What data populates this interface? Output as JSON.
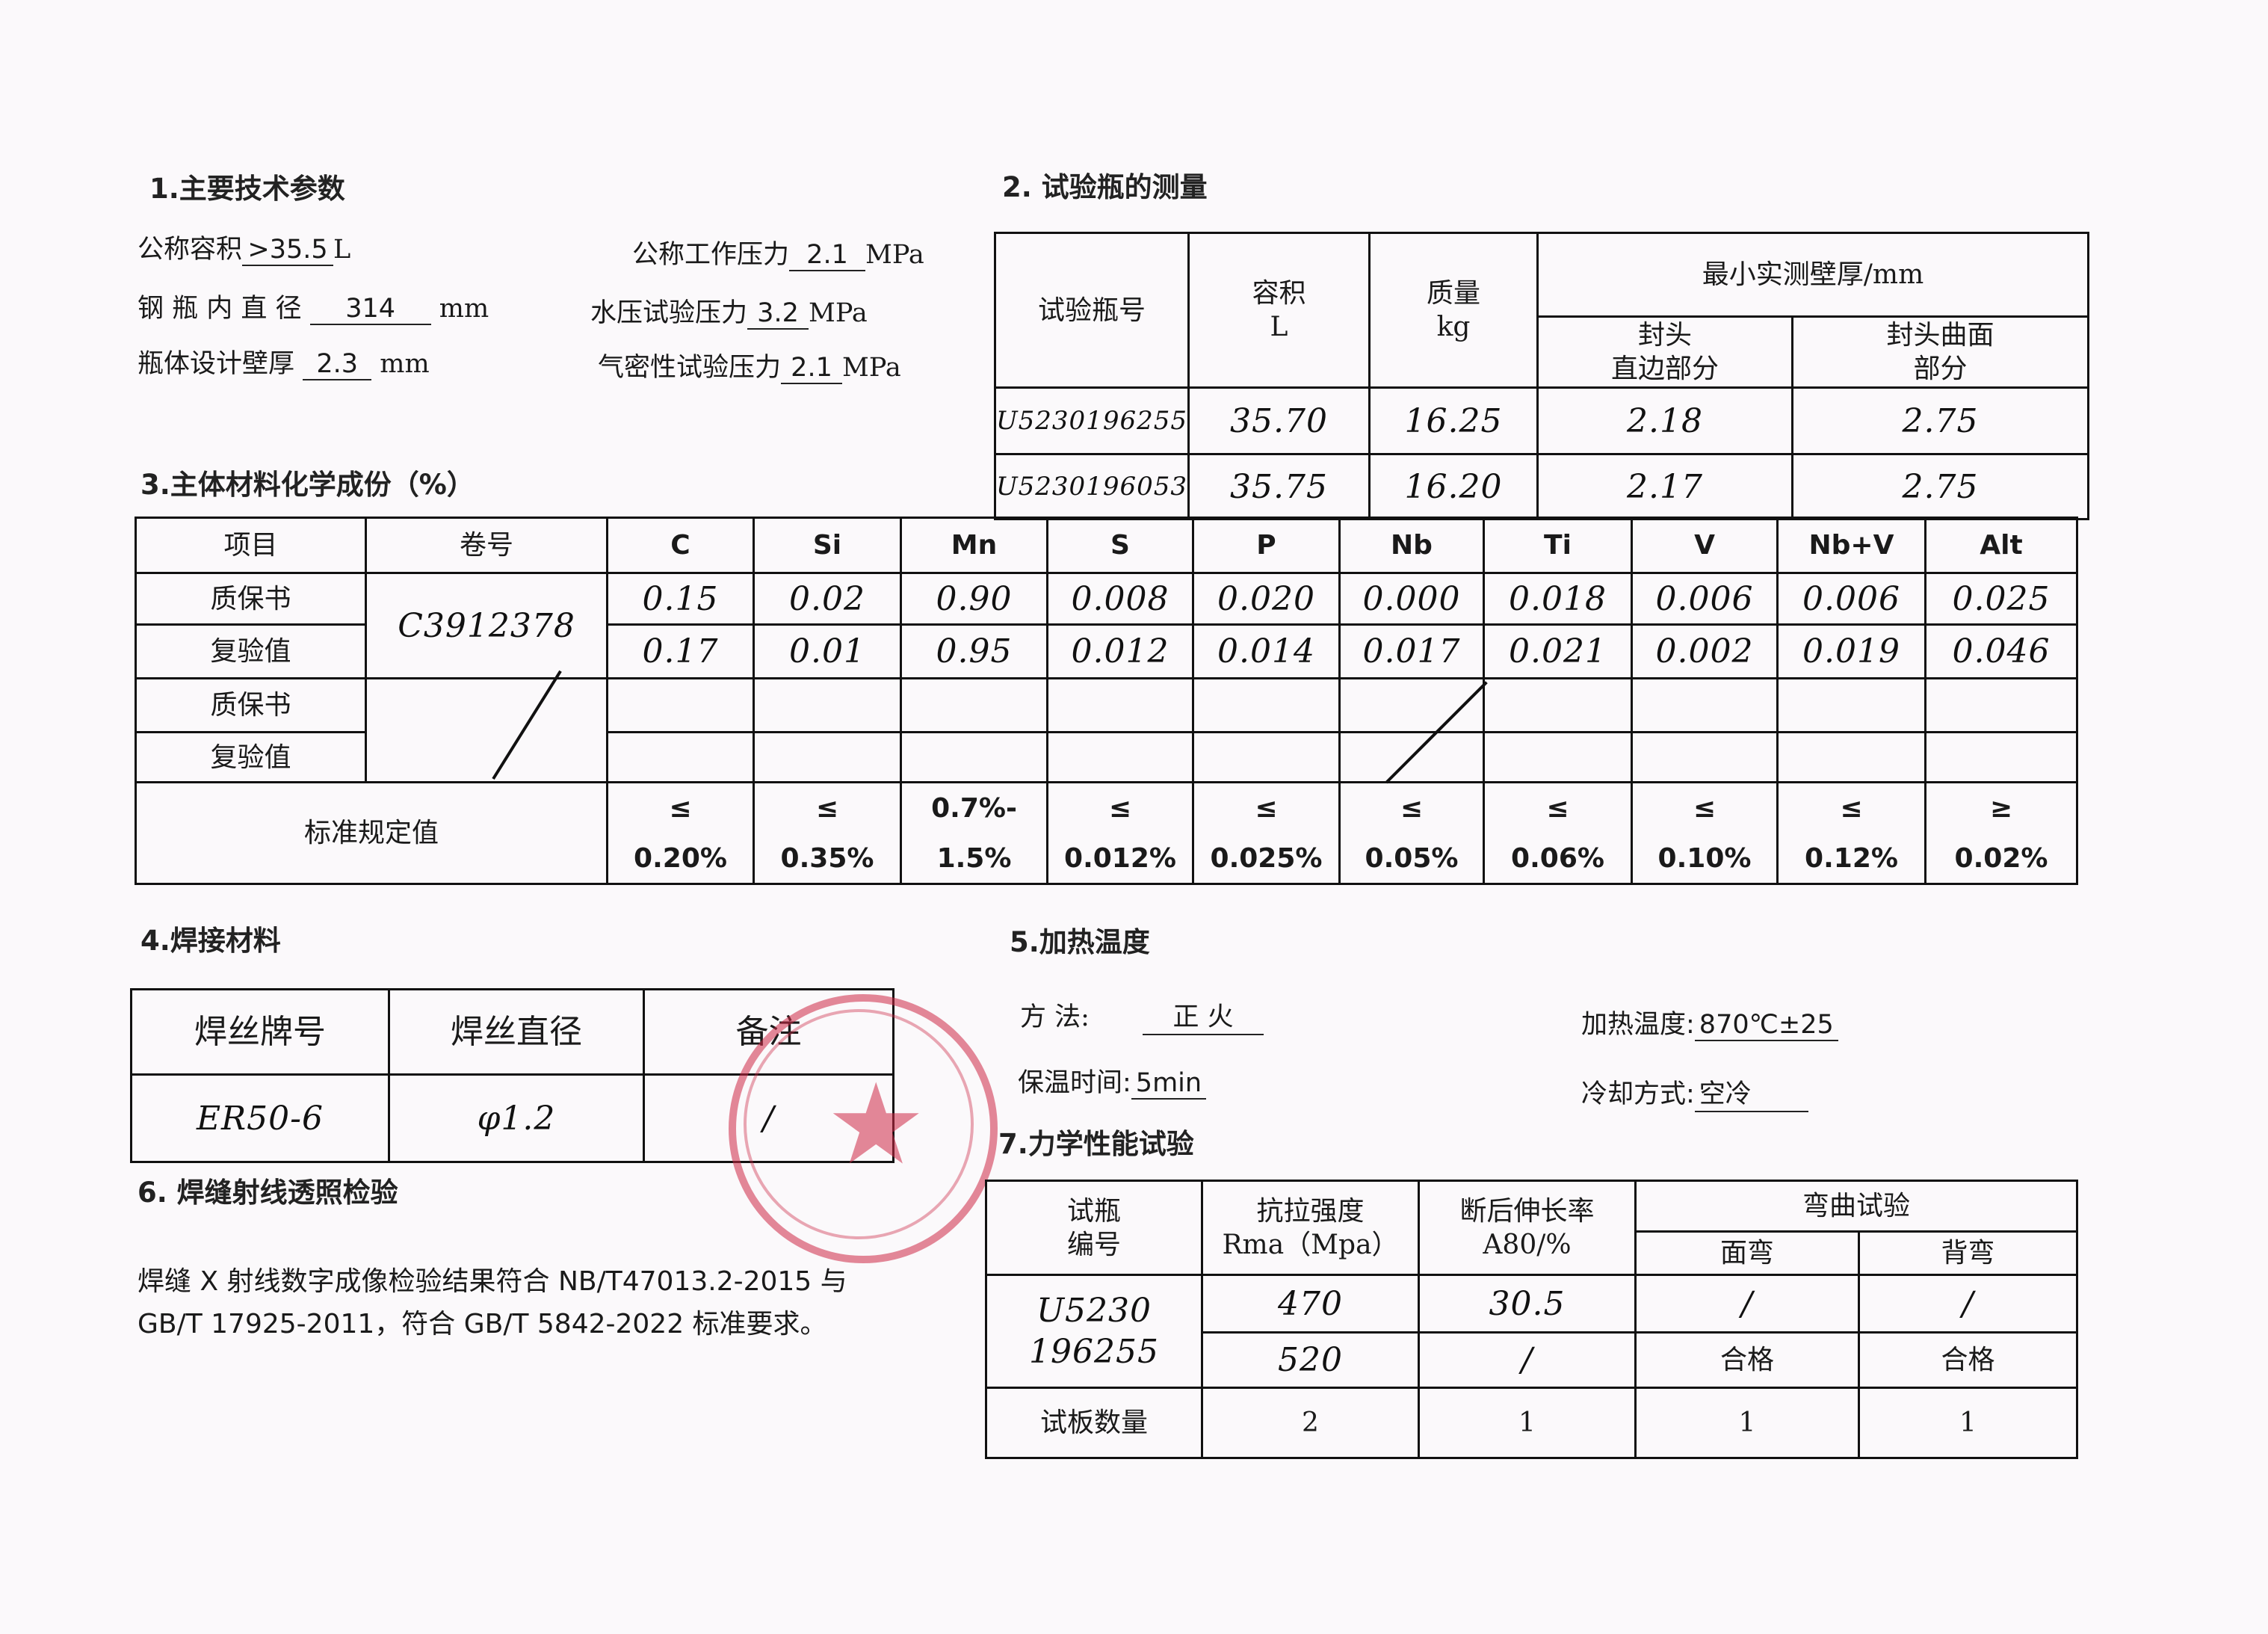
{
  "section1": {
    "title": "1.主要技术参数",
    "nominal_volume_label": "公称容积",
    "nominal_volume": ">35.5",
    "nominal_volume_unit": "L",
    "inner_diameter_label": "钢 瓶 内 直 径",
    "inner_diameter": "314",
    "inner_diameter_unit": "mm",
    "wall_thickness_label": "瓶体设计壁厚",
    "wall_thickness": "2.3",
    "wall_thickness_unit": "mm",
    "working_pressure_label": "公称工作压力",
    "working_pressure": "2.1",
    "working_pressure_unit": "MPa",
    "hydro_pressure_label": "水压试验压力",
    "hydro_pressure": "3.2",
    "hydro_pressure_unit": "MPa",
    "leak_pressure_label": "气密性试验压力",
    "leak_pressure": "2.1",
    "leak_pressure_unit": "MPa"
  },
  "section2": {
    "title": "2.  试验瓶的测量",
    "headers": {
      "bottle_no": "试验瓶号",
      "volume": "容积",
      "volume_unit": "L",
      "mass": "质量",
      "mass_unit": "kg",
      "min_thickness": "最小实测壁厚/mm",
      "straight": "封头\n直边部分",
      "curved": "封头曲面\n部分"
    },
    "rows": [
      {
        "bottle_no": "U5230196255",
        "volume": "35.70",
        "mass": "16.25",
        "straight": "2.18",
        "curved": "2.75"
      },
      {
        "bottle_no": "U5230196053",
        "volume": "35.75",
        "mass": "16.20",
        "straight": "2.17",
        "curved": "2.75"
      }
    ]
  },
  "section3": {
    "title": "3.主体材料化学成份（%）",
    "item_header": "项目",
    "coil_header": "卷号",
    "elements": [
      "C",
      "Si",
      "Mn",
      "S",
      "P",
      "Nb",
      "Ti",
      "V",
      "Nb+V",
      "Alt"
    ],
    "coil_no": "C3912378",
    "rows": [
      {
        "label": "质保书",
        "values": [
          "0.15",
          "0.02",
          "0.90",
          "0.008",
          "0.020",
          "0.000",
          "0.018",
          "0.006",
          "0.006",
          "0.025"
        ]
      },
      {
        "label": "复验值",
        "values": [
          "0.17",
          "0.01",
          "0.95",
          "0.012",
          "0.014",
          "0.017",
          "0.021",
          "0.002",
          "0.019",
          "0.046"
        ]
      },
      {
        "label": "质保书",
        "values": [
          "",
          "",
          "",
          "",
          "",
          "",
          "",
          "",
          "",
          ""
        ]
      },
      {
        "label": "复验值",
        "values": [
          "",
          "",
          "",
          "",
          "",
          "",
          "",
          "",
          "",
          ""
        ]
      }
    ],
    "standard_label": "标准规定值",
    "standard": [
      {
        "op": "≤",
        "val": "0.20%"
      },
      {
        "op": "≤",
        "val": "0.35%"
      },
      {
        "op": "0.7%-",
        "val": "1.5%"
      },
      {
        "op": "≤",
        "val": "0.012%"
      },
      {
        "op": "≤",
        "val": "0.025%"
      },
      {
        "op": "≤",
        "val": "0.05%"
      },
      {
        "op": "≤",
        "val": "0.06%"
      },
      {
        "op": "≤",
        "val": "0.10%"
      },
      {
        "op": "≤",
        "val": "0.12%"
      },
      {
        "op": "≥",
        "val": "0.02%"
      }
    ]
  },
  "section4": {
    "title": "4.焊接材料",
    "headers": [
      "焊丝牌号",
      "焊丝直径",
      "备注"
    ],
    "values": [
      "ER50-6",
      "φ1.2",
      "/"
    ]
  },
  "section5": {
    "title": "5.加热温度",
    "method_label": "方  法:",
    "method": "正   火",
    "temp_label": "加热温度:",
    "temp": "870℃±25",
    "hold_label": "保温时间:",
    "hold": "5min",
    "cool_label": "冷却方式:",
    "cool": "空冷"
  },
  "section6": {
    "title": "6.  焊缝射线透照检验",
    "text_line1": "焊缝 X 射线数字成像检验结果符合 NB/T47013.2-2015 与",
    "text_line2": "GB/T 17925-2011，符合 GB/T 5842-2022 标准要求。"
  },
  "section7": {
    "title": "7.力学性能试验",
    "headers": {
      "bottle": "试瓶\n编号",
      "tensile": "抗拉强度\nRma（Mpa）",
      "elong": "断后伸长率\nA80/%",
      "bend": "弯曲试验",
      "face": "面弯",
      "back": "背弯"
    },
    "bottle_no": "U5230\n196255",
    "rows": [
      {
        "tensile": "470",
        "elong": "30.5",
        "face": "/",
        "back": "/"
      },
      {
        "tensile": "520",
        "elong": "/",
        "face": "合格",
        "back": "合格"
      }
    ],
    "count_label": "试板数量",
    "counts": [
      "2",
      "1",
      "1",
      "1"
    ]
  },
  "colors": {
    "stamp": "#cd2846",
    "ink": "#111111"
  }
}
